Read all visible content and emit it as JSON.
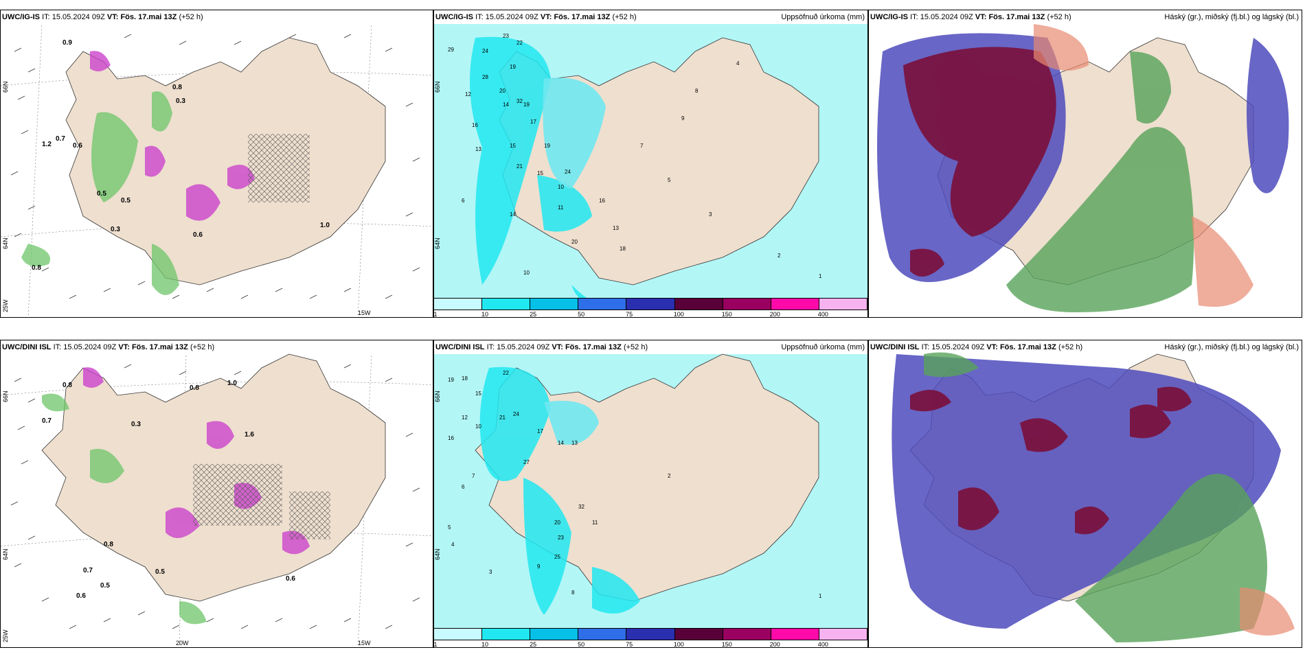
{
  "panels": [
    {
      "id": "ig-cloud-precip",
      "model": "UWC/IG-IS",
      "it_label": "IT:",
      "it_value": "15.05.2024 09Z",
      "vt_label": "VT:",
      "vt_value": "Fös. 17.mai 13Z",
      "lead": "(+52 h)",
      "right_title": "",
      "lat_labels": [
        "66N",
        "64N",
        "25W"
      ],
      "lon_labels": [
        "15W"
      ],
      "point_values": [
        "0.9",
        "0.8",
        "0.7",
        "0.6",
        "1.2",
        "0.5",
        "0.3",
        "0.8",
        "1.0",
        "0.3",
        "0.6",
        "0.5"
      ]
    },
    {
      "id": "ig-accum-precip",
      "model": "UWC/IG-IS",
      "it_label": "IT:",
      "it_value": "15.05.2024 09Z",
      "vt_label": "VT:",
      "vt_value": "Fös. 17.mai 13Z",
      "lead": "(+52 h)",
      "right_title": "Uppsöfnuð úrkoma (mm)",
      "lat_labels": [
        "66N",
        "64N"
      ],
      "lon_labels": [],
      "point_values": [
        "23",
        "22",
        "29",
        "24",
        "19",
        "28",
        "12",
        "20",
        "19",
        "14",
        "32",
        "17",
        "16",
        "13",
        "15",
        "21",
        "19",
        "15",
        "24",
        "10",
        "11",
        "14",
        "16",
        "13",
        "20",
        "18",
        "10",
        "6",
        "5",
        "7",
        "9",
        "8",
        "4",
        "3",
        "2",
        "1"
      ]
    },
    {
      "id": "ig-cloud-levels",
      "model": "UWC/IG-IS",
      "it_label": "IT:",
      "it_value": "15.05.2024 09Z",
      "vt_label": "VT:",
      "vt_value": "Fös. 17.mai 13Z",
      "lead": "(+52 h)",
      "right_title": "Háský (gr.), miðský (fj.bl.) og lágský (bl.)",
      "lat_labels": [],
      "lon_labels": [],
      "point_values": []
    },
    {
      "id": "dini-cloud-precip",
      "model": "UWC/DINI ISL",
      "it_label": "IT:",
      "it_value": "15.05.2024 09Z",
      "vt_label": "VT:",
      "vt_value": "Fös. 17.mai 13Z",
      "lead": "(+52 h)",
      "right_title": "",
      "lat_labels": [
        "66N",
        "64N",
        "25W"
      ],
      "lon_labels": [
        "20W",
        "15W"
      ],
      "point_values": [
        "0.8",
        "1.0",
        "0.7",
        "0.3",
        "0.5",
        "0.7",
        "0.8",
        "0.6",
        "0.5",
        "1.6",
        "0.8",
        "0.6"
      ]
    },
    {
      "id": "dini-accum-precip",
      "model": "UWC/DINI ISL",
      "it_label": "IT:",
      "it_value": "15.05.2024 09Z",
      "vt_label": "VT:",
      "vt_value": "Fös. 17.mai 13Z",
      "lead": "(+52 h)",
      "right_title": "Uppsöfnuð úrkoma (mm)",
      "lat_labels": [
        "66N",
        "64N"
      ],
      "lon_labels": [],
      "point_values": [
        "22",
        "19",
        "18",
        "15",
        "21",
        "24",
        "12",
        "16",
        "10",
        "17",
        "13",
        "14",
        "27",
        "32",
        "20",
        "23",
        "25",
        "11",
        "9",
        "8",
        "7",
        "6",
        "5",
        "4",
        "3",
        "2",
        "1"
      ]
    },
    {
      "id": "dini-cloud-levels",
      "model": "UWC/DINI ISL",
      "it_label": "IT:",
      "it_value": "15.05.2024 09Z",
      "vt_label": "VT:",
      "vt_value": "Fös. 17.mai 13Z",
      "lead": "(+52 h)",
      "right_title": "Háský (gr.), miðský (fj.bl.) og lágský (bl.)",
      "lat_labels": [],
      "lon_labels": [],
      "point_values": []
    }
  ],
  "colorbar": {
    "ticks": [
      "1",
      "10",
      "25",
      "50",
      "75",
      "100",
      "150",
      "200",
      "400"
    ],
    "colors": [
      "#c8fbff",
      "#21e8f0",
      "#07c0e8",
      "#2e6ee8",
      "#2a2fb0",
      "#5a0038",
      "#9a0060",
      "#ff0aa8",
      "#f7b2f0"
    ]
  },
  "colors": {
    "land": "#eedfcf",
    "sea_precip": "#b3f6f6",
    "cloud_high": "#58a35a",
    "cloud_mid": "#4e4bbc",
    "cloud_low": "#7a0f3a"
  }
}
